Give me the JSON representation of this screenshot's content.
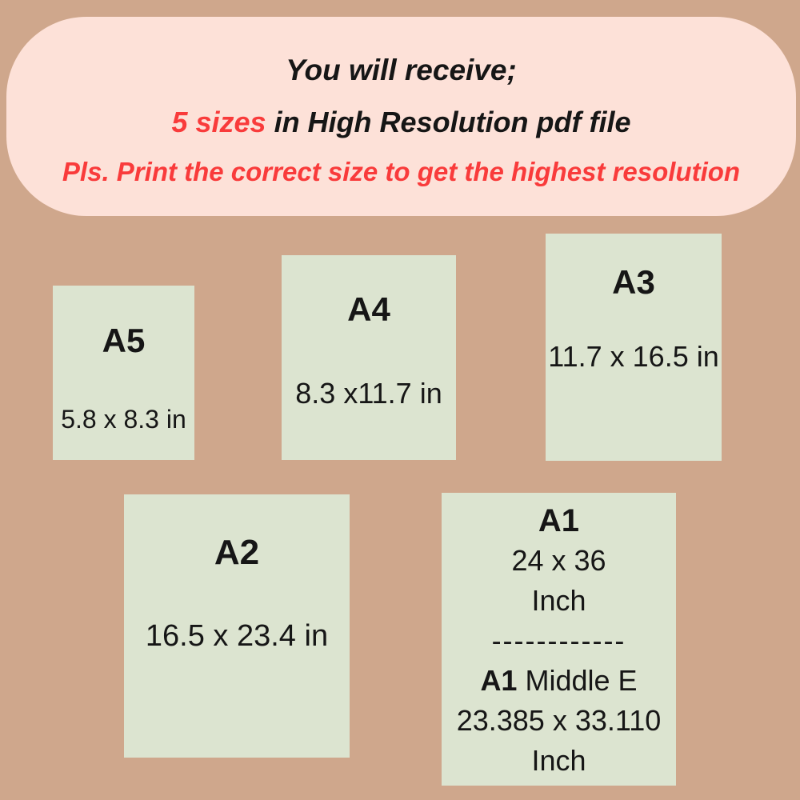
{
  "colors": {
    "bg": "#cfa78c",
    "banner-bg": "#fde1d8",
    "card-bg": "#dce4d0",
    "ink": "#161616",
    "red": "#f93b3b"
  },
  "banner": {
    "line1": "You will receive;",
    "line2_highlight": "5 sizes",
    "line2_rest": "in High Resolution pdf file",
    "line3": "Pls. Print the correct size to get the highest resolution"
  },
  "cards": [
    {
      "title": "A5",
      "dims": "5.8 x 8.3 in"
    },
    {
      "title": "A4",
      "dims": "8.3 x11.7 in"
    },
    {
      "title": "A3",
      "dims": "11.7 x 16.5 in"
    },
    {
      "title": "A2",
      "dims": "16.5 x 23.4 in"
    },
    {
      "title": "A1",
      "line1": "24 x 36",
      "line2": "Inch",
      "divider": "------------",
      "sub_title": "A1",
      "sub_label": "Middle E",
      "sub_dims": "23.385 x 33.110",
      "sub_unit": "Inch"
    }
  ]
}
